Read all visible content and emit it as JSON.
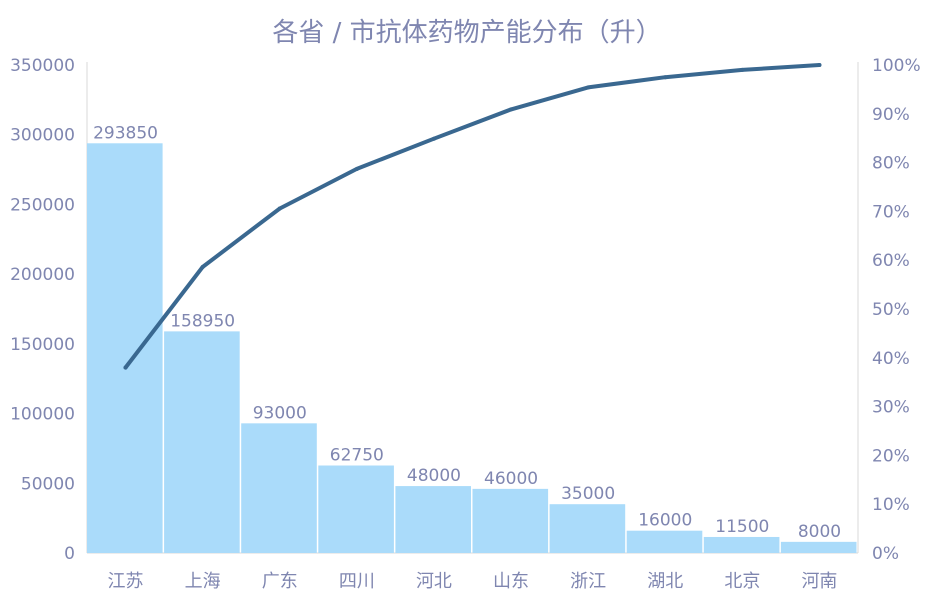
{
  "chart_data": {
    "type": "bar",
    "title": "各省 / 市抗体药物产能分布（升）",
    "categories": [
      "江苏",
      "上海",
      "广东",
      "四川",
      "河北",
      "山东",
      "浙江",
      "湖北",
      "北京",
      "河南"
    ],
    "series": [
      {
        "values": [
          293850,
          158950,
          93000,
          62750,
          48000,
          46000,
          35000,
          16000,
          11500,
          8000
        ],
        "chart_type": "bar",
        "color": "#aadbfa",
        "data_labels": [
          "293850",
          "158950",
          "93000",
          "62750",
          "48000",
          "46000",
          "35000",
          "16000",
          "11500",
          "8000"
        ]
      },
      {
        "values": [
          38.0,
          58.6,
          70.6,
          78.7,
          84.9,
          90.9,
          95.4,
          97.5,
          99.0,
          100.0
        ],
        "chart_type": "line",
        "axis": "right",
        "color": "#3a6890"
      }
    ],
    "ylim": [
      0,
      350000
    ],
    "yticks": [
      "0",
      "50000",
      "100000",
      "150000",
      "200000",
      "250000",
      "300000",
      "350000"
    ],
    "y2lim": [
      0,
      100
    ],
    "y2ticks": [
      "0%",
      "10%",
      "20%",
      "30%",
      "40%",
      "50%",
      "60%",
      "70%",
      "80%",
      "90%",
      "100%"
    ],
    "grid": false,
    "text_color": "#7f86b0"
  }
}
